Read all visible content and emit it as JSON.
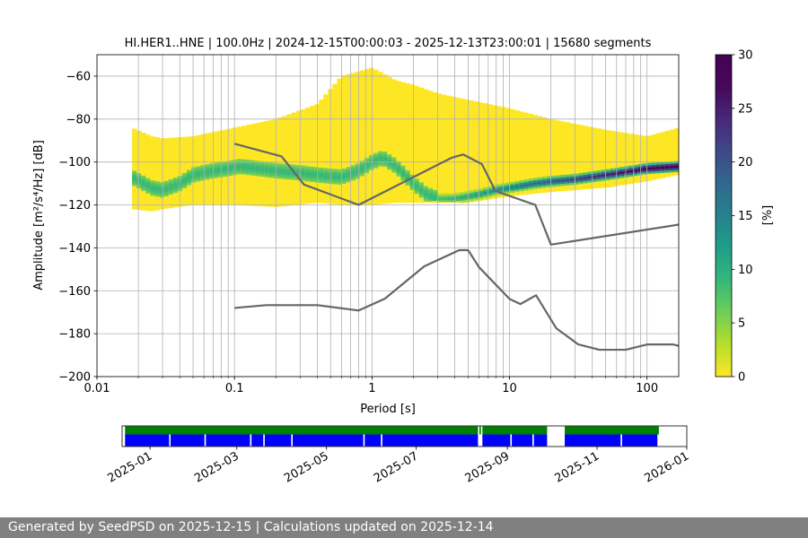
{
  "chart_data": [
    {
      "type": "heatmap",
      "title": "HI.HER1..HNE | 100.0Hz | 2024-12-15T00:00:03 - 2025-12-13T23:00:01 | 15680 segments",
      "xlabel": "Period [s]",
      "ylabel": "Amplitude [m²/s⁴/Hz] [dB]",
      "xscale": "log",
      "xlim": [
        0.01,
        170
      ],
      "ylim": [
        -200,
        -50
      ],
      "xticks": [
        0.01,
        0.1,
        1,
        10,
        100
      ],
      "xtick_labels": [
        "0.01",
        "0.1",
        "1",
        "10",
        "100"
      ],
      "yticks": [
        -200,
        -180,
        -160,
        -140,
        -120,
        -100,
        -80,
        -60
      ],
      "ytick_labels": [
        "−200",
        "−180",
        "−160",
        "−140",
        "−120",
        "−100",
        "−80",
        "−60"
      ],
      "grid": true,
      "colormap": "viridis_r",
      "colorbar": {
        "label": "[%]",
        "range": [
          0,
          30
        ],
        "ticks": [
          0,
          5,
          10,
          15,
          20,
          25,
          30
        ],
        "tick_labels": [
          "0",
          "5",
          "10",
          "15",
          "20",
          "25",
          "30"
        ]
      },
      "psd_mode": {
        "period": [
          0.018,
          0.022,
          0.025,
          0.03,
          0.04,
          0.05,
          0.07,
          0.09,
          0.11,
          0.15,
          0.2,
          0.3,
          0.4,
          0.6,
          0.8,
          1.0,
          1.2,
          1.5,
          2.0,
          2.5,
          3.0,
          4.0,
          5.0,
          6.0,
          8.0,
          10,
          15,
          20,
          30,
          50,
          80,
          100,
          170
        ],
        "amplitude_db": [
          -107,
          -110,
          -112,
          -113,
          -110,
          -106,
          -104,
          -103,
          -102,
          -103,
          -104,
          -105,
          -106,
          -107,
          -104,
          -100,
          -98,
          -102,
          -110,
          -115,
          -117,
          -117,
          -116,
          -115,
          -113,
          -112,
          -110,
          -109,
          -108,
          -106,
          -104,
          -103,
          -102
        ]
      },
      "psd_band": {
        "period": [
          0.018,
          0.025,
          0.03,
          0.05,
          0.1,
          0.2,
          0.4,
          0.6,
          1.0,
          1.5,
          2.0,
          3.0,
          5.0,
          10,
          20,
          50,
          100,
          170
        ],
        "upper_db": [
          -84,
          -88,
          -89,
          -88,
          -84,
          -80,
          -73,
          -60,
          -56,
          -62,
          -64,
          -68,
          -71,
          -75,
          -80,
          -85,
          -88,
          -84
        ],
        "lower_db": [
          -122,
          -123,
          -122,
          -120,
          -120,
          -121,
          -119,
          -120,
          -120,
          -119,
          -119,
          -119,
          -119,
          -116,
          -114,
          -112,
          -109,
          -106
        ]
      },
      "reference_curves": [
        {
          "period": [
            0.1,
            0.17,
            0.4,
            0.8,
            1.24,
            2.4,
            4.3,
            5,
            6,
            10,
            12,
            15.6,
            21.9,
            31.6,
            45,
            70,
            101,
            154,
            170
          ],
          "amplitude_db": [
            -168,
            -166.7,
            -166.7,
            -169.2,
            -163.7,
            -148.6,
            -141.1,
            -141.1,
            -149,
            -163.8,
            -166.2,
            -162.1,
            -177.5,
            -185,
            -187.5,
            -187.5,
            -185,
            -185,
            -185.7
          ]
        },
        {
          "period": [
            0.1,
            0.22,
            0.32,
            0.8,
            3.8,
            4.6,
            6.3,
            7.9,
            15.4,
            20,
            354
          ],
          "amplitude_db": [
            -91.5,
            -97.4,
            -110.5,
            -120,
            -98,
            -96.5,
            -101,
            -113.5,
            -120,
            -138.5,
            -126
          ]
        }
      ]
    },
    {
      "type": "timeline",
      "x_start": "2024-12-13",
      "x_end": "2026-01-01",
      "xticks": [
        "2025-01-01",
        "2025-03-01",
        "2025-05-01",
        "2025-07-01",
        "2025-09-01",
        "2025-11-01",
        "2026-01-01"
      ],
      "xtick_labels": [
        "2025-01",
        "2025-03",
        "2025-05",
        "2025-07",
        "2025-09",
        "2025-11",
        "2026-01"
      ],
      "tracks": [
        {
          "name": "data available",
          "color": "#008000",
          "intervals": [
            [
              "2024-12-15",
              "2025-08-12"
            ],
            [
              "2025-08-13",
              "2025-08-14"
            ],
            [
              "2025-08-15",
              "2025-09-28"
            ],
            [
              "2025-10-10",
              "2025-12-13"
            ]
          ]
        },
        {
          "name": "segments used",
          "color": "#0000ff",
          "intervals": [
            [
              "2024-12-15",
              "2025-01-14"
            ],
            [
              "2025-01-15",
              "2025-02-07"
            ],
            [
              "2025-02-08",
              "2025-03-10"
            ],
            [
              "2025-03-11",
              "2025-03-19"
            ],
            [
              "2025-03-20",
              "2025-04-07"
            ],
            [
              "2025-04-08",
              "2025-05-26"
            ],
            [
              "2025-05-27",
              "2025-06-07"
            ],
            [
              "2025-06-08",
              "2025-08-12"
            ],
            [
              "2025-08-15",
              "2025-09-03"
            ],
            [
              "2025-09-04",
              "2025-09-18"
            ],
            [
              "2025-09-19",
              "2025-09-28"
            ],
            [
              "2025-10-10",
              "2025-11-17"
            ],
            [
              "2025-11-18",
              "2025-12-12"
            ]
          ]
        }
      ]
    }
  ],
  "footer": {
    "text": "Generated by SeedPSD on 2025-12-15 | Calculations updated on 2025-12-14"
  }
}
